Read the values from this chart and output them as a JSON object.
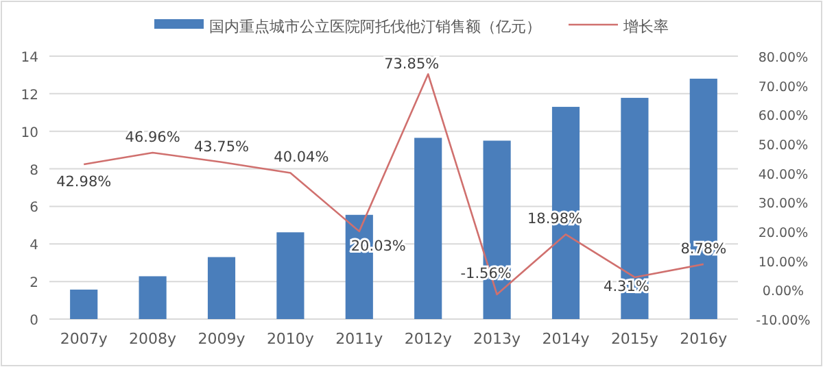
{
  "chart_data": {
    "type": "bar",
    "categories": [
      "2007y",
      "2008y",
      "2009y",
      "2010y",
      "2011y",
      "2012y",
      "2013y",
      "2014y",
      "2015y",
      "2016y"
    ],
    "series": [
      {
        "name": "国内重点城市公立医院阿托伐他汀销售额（亿元）",
        "type": "bar",
        "color": "#4a7ebb",
        "values": [
          1.57,
          2.28,
          3.3,
          4.62,
          5.55,
          9.65,
          9.5,
          11.3,
          11.78,
          12.8
        ]
      },
      {
        "name": "增长率",
        "type": "line",
        "axis": "y2",
        "color": "#d0706e",
        "values": [
          42.98,
          46.96,
          43.75,
          40.04,
          20.03,
          73.85,
          -1.56,
          18.98,
          4.31,
          8.78
        ],
        "value_labels": [
          "42.98%",
          "46.96%",
          "43.75%",
          "40.04%",
          "20.03%",
          "73.85%",
          "-1.56%",
          "18.98%",
          "4.31%",
          "8.78%"
        ]
      }
    ],
    "ylim": [
      0,
      14
    ],
    "yticks": [
      0,
      2,
      4,
      6,
      8,
      10,
      12,
      14
    ],
    "y2lim": [
      -10,
      80
    ],
    "y2ticks": [
      {
        "value": -10,
        "label": "-10.00%"
      },
      {
        "value": 0,
        "label": "0.00%"
      },
      {
        "value": 10,
        "label": "10.00%"
      },
      {
        "value": 20,
        "label": "20.00%"
      },
      {
        "value": 30,
        "label": "30.00%"
      },
      {
        "value": 40,
        "label": "40.00%"
      },
      {
        "value": 50,
        "label": "50.00%"
      },
      {
        "value": 60,
        "label": "60.00%"
      },
      {
        "value": 70,
        "label": "70.00%"
      },
      {
        "value": 80,
        "label": "80.00%"
      }
    ],
    "grid": "y",
    "legend": "top"
  }
}
